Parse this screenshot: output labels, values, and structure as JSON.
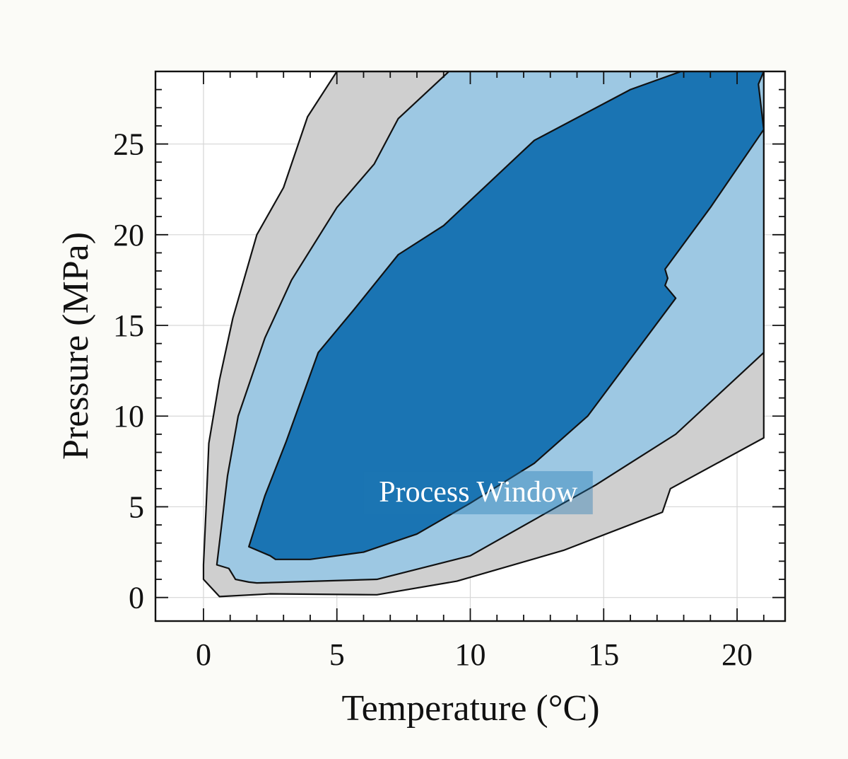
{
  "chart_data": {
    "type": "contour",
    "xlabel": "Temperature (°C)",
    "ylabel": "Pressure (MPa)",
    "xlim": [
      -1.8,
      21.8
    ],
    "ylim": [
      -1.3,
      29.0
    ],
    "xticks": [
      0,
      5,
      10,
      15,
      20
    ],
    "xtick_labels": [
      "0",
      "5",
      "10",
      "15",
      "20"
    ],
    "yticks": [
      0,
      5,
      10,
      15,
      20,
      25
    ],
    "ytick_labels": [
      "0",
      "5",
      "10",
      "15",
      "20",
      "25"
    ],
    "grid": true,
    "annotation": {
      "text": "Process Window",
      "x": 10.3,
      "y": 5.6
    },
    "regions": [
      {
        "level": "outer",
        "color": "#cfcfcf",
        "points": [
          [
            0.0,
            1.0
          ],
          [
            0.0,
            1.8
          ],
          [
            0.1,
            5.0
          ],
          [
            0.2,
            8.5
          ],
          [
            0.6,
            12.0
          ],
          [
            1.1,
            15.4
          ],
          [
            2.0,
            20.0
          ],
          [
            3.0,
            22.6
          ],
          [
            3.9,
            26.5
          ],
          [
            5.0,
            29.0
          ],
          [
            21.0,
            29.0
          ],
          [
            21.0,
            8.8
          ],
          [
            17.5,
            6.0
          ],
          [
            17.2,
            4.7
          ],
          [
            13.5,
            2.6
          ],
          [
            9.5,
            0.9
          ],
          [
            6.5,
            0.15
          ],
          [
            2.5,
            0.2
          ],
          [
            0.6,
            0.05
          ]
        ]
      },
      {
        "level": "middle",
        "color": "#9dc8e3",
        "points": [
          [
            0.5,
            1.8
          ],
          [
            0.9,
            6.7
          ],
          [
            1.3,
            10.0
          ],
          [
            2.3,
            14.3
          ],
          [
            3.3,
            17.5
          ],
          [
            5.0,
            21.5
          ],
          [
            6.4,
            23.9
          ],
          [
            7.3,
            26.4
          ],
          [
            9.2,
            29.0
          ],
          [
            21.0,
            29.0
          ],
          [
            21.0,
            13.5
          ],
          [
            17.7,
            9.0
          ],
          [
            14.7,
            6.2
          ],
          [
            10.0,
            2.3
          ],
          [
            6.5,
            1.0
          ],
          [
            2.0,
            0.8
          ],
          [
            1.7,
            0.85
          ],
          [
            1.2,
            1.0
          ],
          [
            0.95,
            1.6
          ]
        ]
      },
      {
        "level": "inner",
        "color": "#1a74b3",
        "points": [
          [
            1.7,
            2.8
          ],
          [
            2.3,
            5.6
          ],
          [
            3.1,
            8.6
          ],
          [
            4.3,
            13.5
          ],
          [
            5.6,
            15.8
          ],
          [
            7.3,
            18.9
          ],
          [
            9.0,
            20.5
          ],
          [
            12.4,
            25.2
          ],
          [
            16.0,
            28.0
          ],
          [
            17.9,
            29.0
          ],
          [
            21.0,
            29.0
          ],
          [
            20.8,
            28.3
          ],
          [
            21.0,
            25.8
          ],
          [
            19.0,
            21.5
          ],
          [
            17.3,
            18.1
          ],
          [
            17.4,
            17.6
          ],
          [
            17.3,
            17.2
          ],
          [
            17.7,
            16.5
          ],
          [
            14.4,
            10.0
          ],
          [
            12.4,
            7.4
          ],
          [
            10.0,
            5.2
          ],
          [
            8.0,
            3.5
          ],
          [
            6.0,
            2.5
          ],
          [
            4.0,
            2.1
          ],
          [
            2.7,
            2.1
          ],
          [
            2.5,
            2.3
          ]
        ]
      }
    ]
  }
}
